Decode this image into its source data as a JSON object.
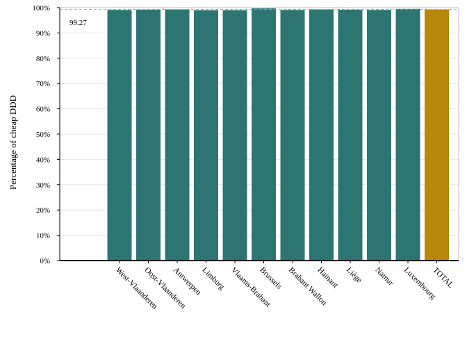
{
  "chart_data": {
    "type": "bar",
    "title": "",
    "xlabel": "",
    "ylabel": "Percentage of cheap DDD",
    "ylim": [
      0,
      100
    ],
    "yticks": [
      0,
      10,
      20,
      30,
      40,
      50,
      60,
      70,
      80,
      90,
      100
    ],
    "ytick_suffix": "%",
    "grid": true,
    "legend": "none",
    "categories": [
      "West-Vlaanderen",
      "Oost-Vlaanderen",
      "Antwerpen",
      "Limburg",
      "Vlaams-Brabant",
      "Brussels",
      "Brabant Wallon",
      "Hainaut",
      "Liège",
      "Namur",
      "Luxembourg",
      "TOTAL"
    ],
    "values": [
      99.1,
      99.2,
      99.3,
      99.0,
      99.0,
      99.7,
      99.1,
      99.3,
      99.2,
      99.1,
      99.5,
      99.27
    ],
    "colors": {
      "region_bar": "#2d7573",
      "total_bar": "#b8860b",
      "reference_line": "#c8a040",
      "grid": "#e6e6e6",
      "axis": "#000000"
    },
    "reference_line": {
      "value": 99.27,
      "label": "99.27",
      "style": "dashed"
    }
  }
}
